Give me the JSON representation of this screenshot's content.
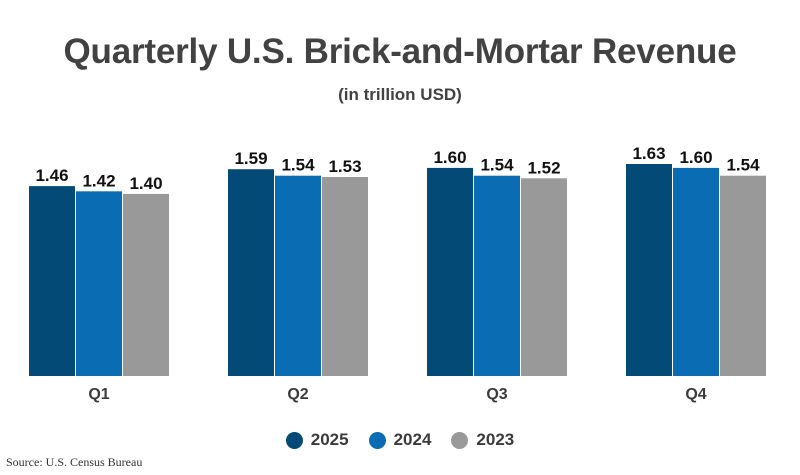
{
  "chart_data": {
    "type": "bar",
    "title": "Quarterly U.S. Brick-and-Mortar Revenue",
    "subtitle": "(in trillion USD)",
    "categories": [
      "Q1",
      "Q2",
      "Q3",
      "Q4"
    ],
    "series": [
      {
        "name": "2025",
        "color": "#044a77",
        "values": [
          1.46,
          1.59,
          1.6,
          1.63
        ],
        "labels": [
          "1.46",
          "1.59",
          "1.60",
          "1.63"
        ]
      },
      {
        "name": "2024",
        "color": "#0a6cb2",
        "values": [
          1.42,
          1.54,
          1.54,
          1.6
        ],
        "labels": [
          "1.42",
          "1.54",
          "1.54",
          "1.60"
        ]
      },
      {
        "name": "2023",
        "color": "#999999",
        "values": [
          1.4,
          1.53,
          1.52,
          1.54
        ],
        "labels": [
          "1.40",
          "1.53",
          "1.52",
          "1.54"
        ]
      }
    ],
    "ylim": [
      0,
      1.63
    ],
    "grid": false,
    "legend_position": "bottom"
  },
  "source": "Source: U.S. Census Bureau"
}
